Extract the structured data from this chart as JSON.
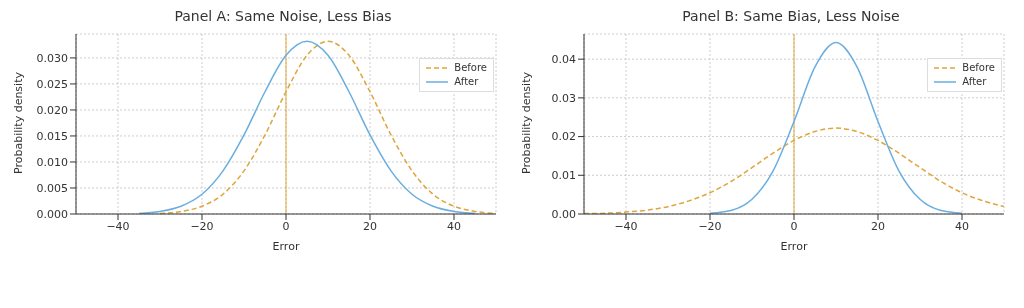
{
  "chart_data": [
    {
      "type": "line",
      "title": "Panel A: Same Noise, Less Bias",
      "xlabel": "Error",
      "ylabel": "Probability density",
      "x": [
        -35,
        -30,
        -25,
        -20,
        -15,
        -10,
        -5,
        0,
        5,
        10,
        15,
        20,
        25,
        30,
        35,
        40,
        45,
        50
      ],
      "series": [
        {
          "name": "Before",
          "color": "#dfa53a",
          "line_style": "dashed",
          "values": [
            null,
            0.0001,
            0.0005,
            0.0015,
            0.0038,
            0.0083,
            0.0152,
            0.0235,
            0.0305,
            0.0332,
            0.0305,
            0.0235,
            0.0152,
            0.0083,
            0.0038,
            0.0015,
            0.0005,
            0.0001
          ]
        },
        {
          "name": "After",
          "color": "#6aaee0",
          "line_style": "solid",
          "values": [
            0.0001,
            0.0005,
            0.0015,
            0.0038,
            0.0083,
            0.0152,
            0.0235,
            0.0305,
            0.0332,
            0.0305,
            0.0235,
            0.0152,
            0.0083,
            0.0038,
            0.0015,
            0.0005,
            0.0001,
            null
          ]
        }
      ],
      "xlim": [
        -50,
        50
      ],
      "xticks": [
        -40,
        -20,
        0,
        20,
        40
      ],
      "ylim": [
        0,
        0.0346
      ],
      "yticks": [
        {
          "value": 0,
          "label": "0.000"
        },
        {
          "value": 0.005,
          "label": "0.005"
        },
        {
          "value": 0.01,
          "label": "0.010"
        },
        {
          "value": 0.015,
          "label": "0.015"
        },
        {
          "value": 0.02,
          "label": "0.020"
        },
        {
          "value": 0.025,
          "label": "0.025"
        },
        {
          "value": 0.03,
          "label": "0.030"
        }
      ],
      "ref_lines": [
        {
          "axis": "x",
          "value": 0,
          "color": "#dfa53a"
        }
      ],
      "grid": true,
      "legend": "top right",
      "marker": "none"
    },
    {
      "type": "line",
      "title": "Panel B: Same Bias, Less Noise",
      "xlabel": "Error",
      "ylabel": "Probability density",
      "x": [
        -50,
        -45,
        -40,
        -35,
        -30,
        -25,
        -20,
        -15,
        -10,
        -5,
        0,
        5,
        10,
        15,
        20,
        25,
        30,
        35,
        40,
        45,
        50
      ],
      "series": [
        {
          "name": "Before",
          "color": "#dfa53a",
          "line_style": "dashed",
          "values": [
            0.0001,
            0.0002,
            0.0005,
            0.001,
            0.0019,
            0.0034,
            0.0055,
            0.0084,
            0.012,
            0.0157,
            0.019,
            0.0213,
            0.0222,
            0.0213,
            0.019,
            0.0157,
            0.012,
            0.0084,
            0.0055,
            0.0034,
            0.0019
          ]
        },
        {
          "name": "After",
          "color": "#6aaee0",
          "line_style": "solid",
          "values": [
            null,
            null,
            null,
            null,
            null,
            null,
            0.0002,
            0.0009,
            0.0038,
            0.0111,
            0.0239,
            0.038,
            0.0443,
            0.038,
            0.0239,
            0.0111,
            0.0038,
            0.0009,
            0.0002,
            null,
            null
          ]
        }
      ],
      "xlim": [
        -50,
        50
      ],
      "xticks": [
        -40,
        -20,
        0,
        20,
        40
      ],
      "ylim": [
        0,
        0.0465
      ],
      "yticks": [
        {
          "value": 0,
          "label": "0.00"
        },
        {
          "value": 0.01,
          "label": "0.01"
        },
        {
          "value": 0.02,
          "label": "0.02"
        },
        {
          "value": 0.03,
          "label": "0.03"
        },
        {
          "value": 0.04,
          "label": "0.04"
        }
      ],
      "ref_lines": [
        {
          "axis": "x",
          "value": 0,
          "color": "#dfa53a"
        }
      ],
      "grid": true,
      "legend": "top right",
      "marker": "none"
    }
  ]
}
